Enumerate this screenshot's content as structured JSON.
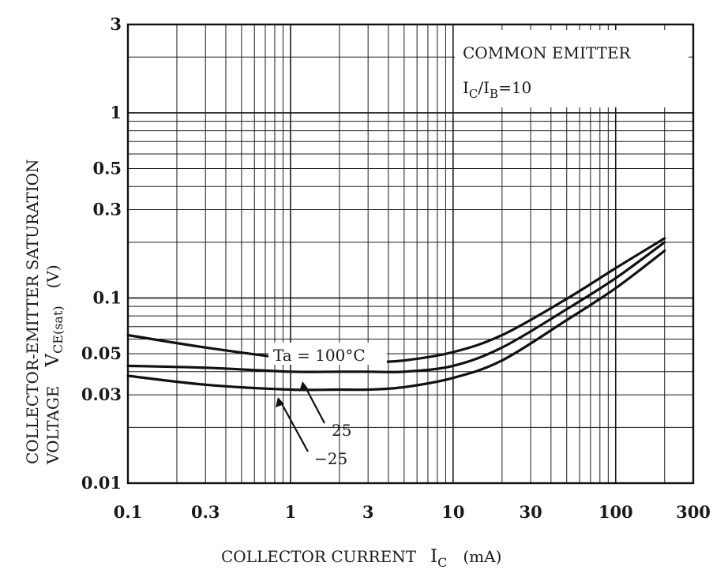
{
  "chart_data": {
    "type": "line",
    "xscale": "log",
    "yscale": "log",
    "xlim": [
      0.1,
      300
    ],
    "ylim": [
      0.01,
      3
    ],
    "xticks": [
      {
        "value": 0.1,
        "label": "0.1"
      },
      {
        "value": 0.3,
        "label": "0.3"
      },
      {
        "value": 1,
        "label": "1"
      },
      {
        "value": 3,
        "label": "3"
      },
      {
        "value": 10,
        "label": "10"
      },
      {
        "value": 30,
        "label": "30"
      },
      {
        "value": 100,
        "label": "100"
      },
      {
        "value": 300,
        "label": "300"
      }
    ],
    "yticks": [
      {
        "value": 3,
        "label": "3"
      },
      {
        "value": 1,
        "label": "1"
      },
      {
        "value": 0.5,
        "label": "0.5"
      },
      {
        "value": 0.3,
        "label": "0.3"
      },
      {
        "value": 0.1,
        "label": "0.1"
      },
      {
        "value": 0.05,
        "label": "0.05"
      },
      {
        "value": 0.03,
        "label": "0.03"
      },
      {
        "value": 0.01,
        "label": "0.01"
      }
    ],
    "xlabel": {
      "main": "COLLECTOR CURRENT",
      "symbol": "I",
      "sub": "C",
      "unit": "(mA)"
    },
    "ylabel": {
      "line1": "COLLECTOR-EMITTER SATURATION",
      "line2a": "VOLTAGE",
      "symbol": "V",
      "sub": "CE(sat)",
      "unit": "(V)"
    },
    "legend": {
      "line1": "COMMON EMITTER",
      "sym1": "I",
      "sub1": "C",
      "slash": "/",
      "sym2": "I",
      "sub2": "B",
      "rest": "=10"
    },
    "grid": true,
    "series": [
      {
        "name": "Ta=100°C",
        "x": [
          0.1,
          0.3,
          1,
          2,
          3,
          5,
          10,
          20,
          50,
          100,
          200
        ],
        "values": [
          0.063,
          0.054,
          0.047,
          0.045,
          0.045,
          0.046,
          0.051,
          0.063,
          0.099,
          0.145,
          0.21
        ]
      },
      {
        "name": "25",
        "x": [
          0.1,
          0.3,
          1,
          2,
          3,
          5,
          10,
          20,
          50,
          100,
          200
        ],
        "values": [
          0.043,
          0.042,
          0.04,
          0.04,
          0.04,
          0.04,
          0.043,
          0.054,
          0.087,
          0.128,
          0.2
        ]
      },
      {
        "name": "-25",
        "x": [
          0.1,
          0.3,
          1,
          2,
          3,
          5,
          10,
          20,
          50,
          100,
          200
        ],
        "values": [
          0.038,
          0.034,
          0.032,
          0.032,
          0.032,
          0.033,
          0.037,
          0.046,
          0.076,
          0.113,
          0.18
        ]
      }
    ],
    "annotations": [
      {
        "series": "Ta=100°C",
        "text": "Ta = 100°C"
      },
      {
        "series": "25",
        "text": "25"
      },
      {
        "series": "-25",
        "text": "−25"
      }
    ]
  }
}
